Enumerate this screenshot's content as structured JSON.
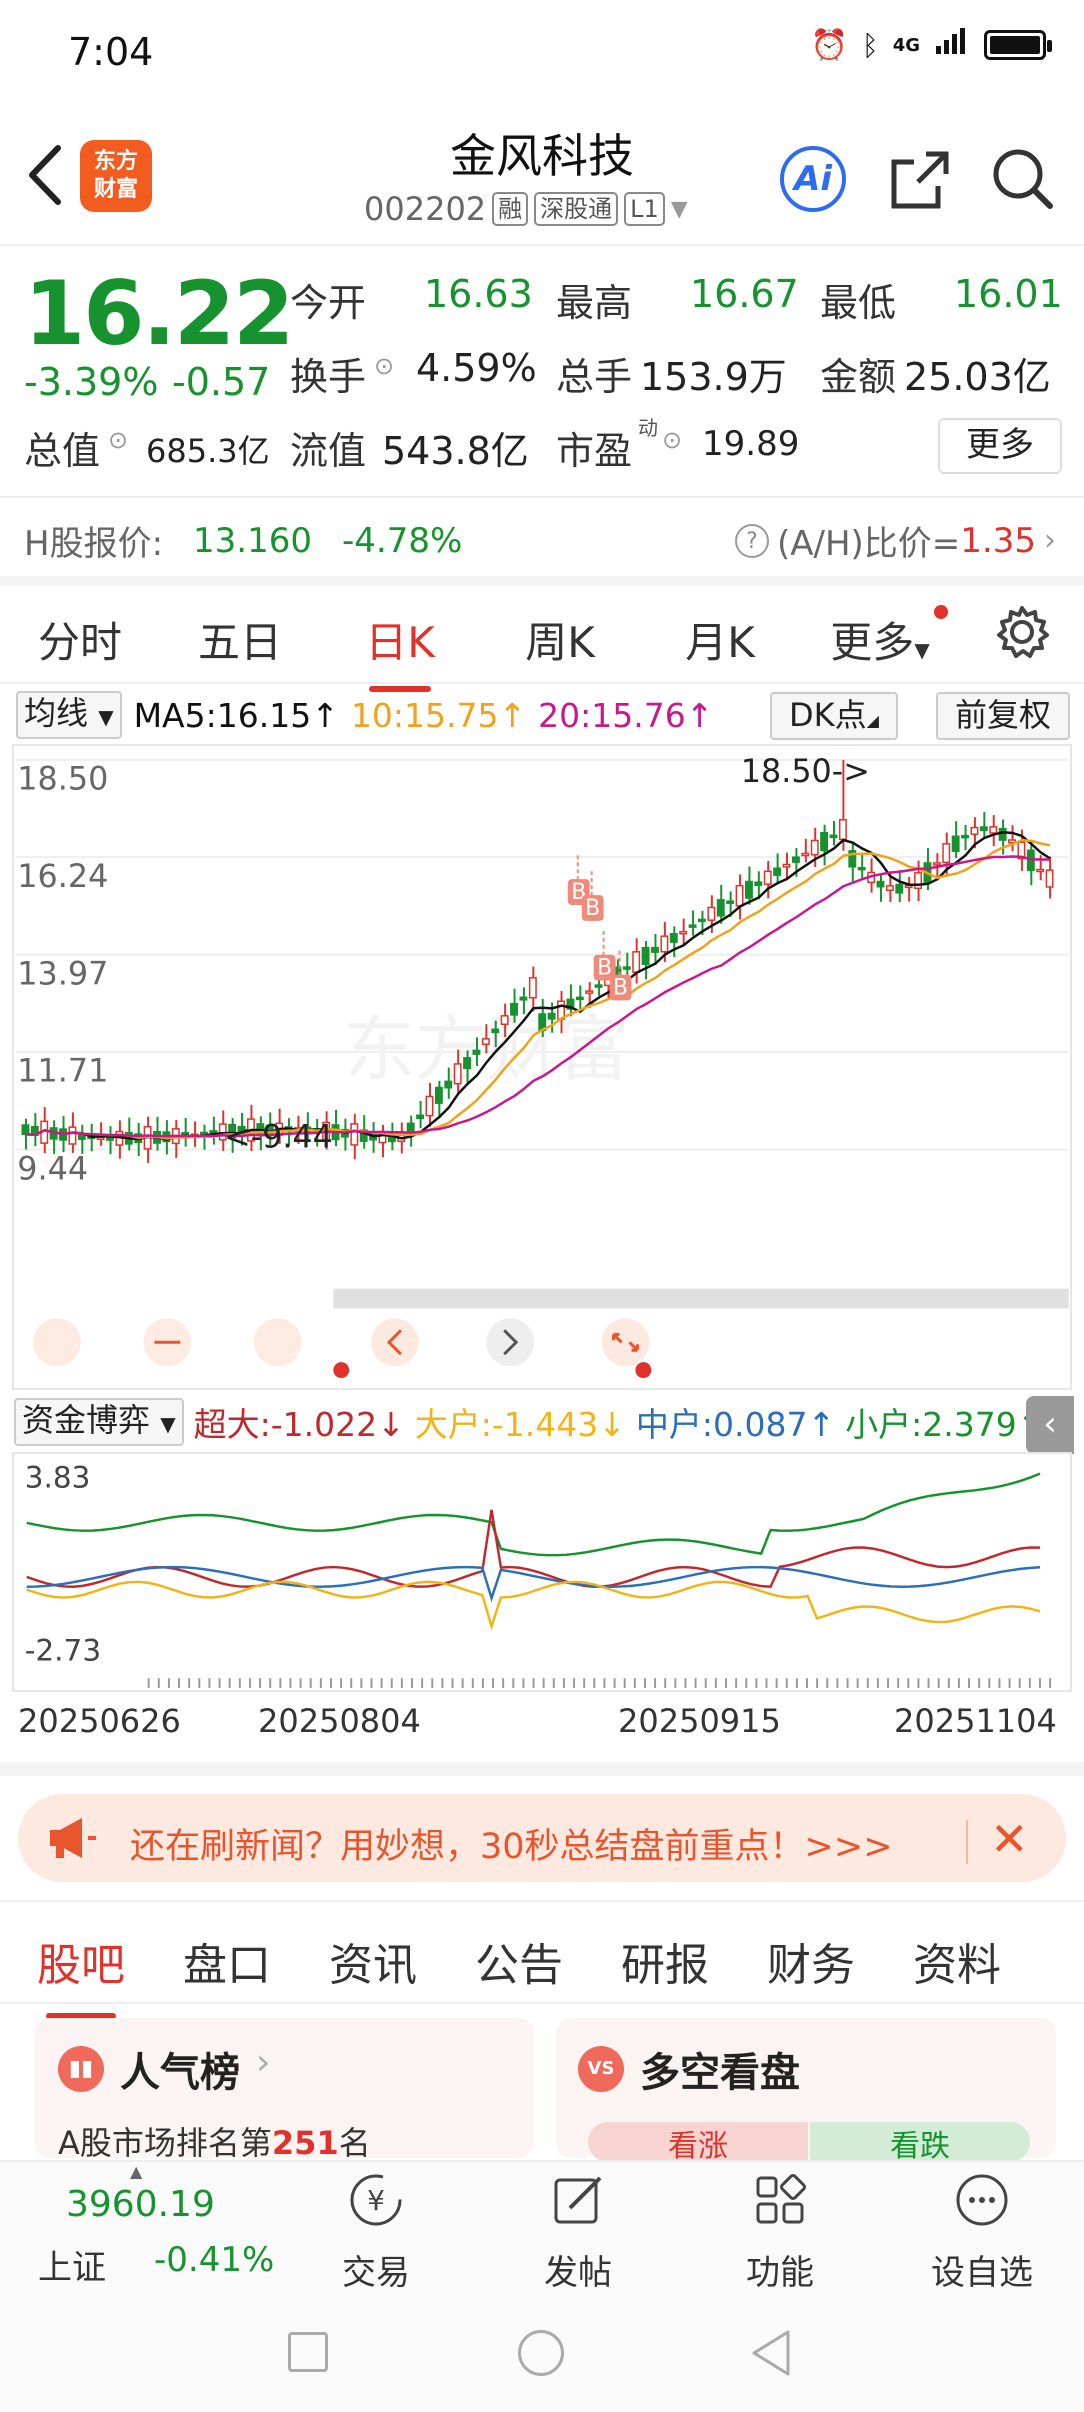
{
  "status_bar": {
    "time": "7:04",
    "signal": "4G"
  },
  "header": {
    "logo_line1": "东方",
    "logo_line2": "财富",
    "stock_name": "金风科技",
    "stock_code": "002202",
    "tags": [
      "融",
      "深股通",
      "L1"
    ],
    "ai_label": "Ai"
  },
  "quote": {
    "price": "16.22",
    "change_pct": "-3.39%",
    "change_val": "-0.57",
    "open_label": "今开",
    "open": "16.63",
    "high_label": "最高",
    "high": "16.67",
    "low_label": "最低",
    "low": "16.01",
    "turnover_label": "换手",
    "turnover": "4.59%",
    "volume_label": "总手",
    "volume": "153.9万",
    "amount_label": "金额",
    "amount": "25.03亿",
    "mktcap_label": "总值",
    "mktcap": "685.3亿",
    "float_label": "流值",
    "float_cap": "543.8亿",
    "pe_label": "市盈",
    "pe_sup": "动",
    "pe": "19.89",
    "more_label": "更多"
  },
  "h_share": {
    "label": "H股报价:",
    "price": "13.160",
    "change": "-4.78%",
    "ratio_label": "(A/H)比价=",
    "ratio": "1.35"
  },
  "period_tabs": [
    "分时",
    "五日",
    "日K",
    "周K",
    "月K",
    "更多"
  ],
  "active_period": "日K",
  "ma_bar": {
    "selector": "均线",
    "ma5": "MA5:16.15↑",
    "ma10": "10:15.75↑",
    "ma20": "20:15.76↑",
    "dk_label": "DK点",
    "fq_label": "前复权"
  },
  "kline": {
    "y_labels": [
      "18.50",
      "16.24",
      "13.97",
      "11.71",
      "9.44"
    ],
    "max_label": "18.50->",
    "min_label": "<-9.44",
    "watermark": "东方财富",
    "buy_marker": "B"
  },
  "fund": {
    "selector": "资金博弈",
    "super_large": "超大:-1.022↓",
    "large": "大户:-1.443↓",
    "medium": "中户:0.087↑",
    "small": "小户:2.379↑",
    "y_top": "3.83",
    "y_bottom": "-2.73",
    "collapse": "‹"
  },
  "dates": [
    "20250626",
    "20250804",
    "20250915",
    "20251104"
  ],
  "promo": {
    "text": "还在刷新闻？用妙想，30秒总结盘前重点！>>>"
  },
  "info_tabs": [
    "股吧",
    "盘口",
    "资讯",
    "公告",
    "研报",
    "财务",
    "资料"
  ],
  "active_info_tab": "股吧",
  "cards": {
    "popularity_title": "人气榜",
    "popularity_prefix": "A股市场排名第",
    "popularity_rank": "251",
    "popularity_suffix": "名",
    "bullbear_title": "多空看盘",
    "bull_label": "看涨",
    "bear_label": "看跌",
    "vs_icon": "VS"
  },
  "bottom_nav": {
    "index_value": "3960.19",
    "index_name": "上证",
    "index_change": "-0.41%",
    "trade": "交易",
    "post": "发帖",
    "features": "功能",
    "favorite": "设自选"
  },
  "colors": {
    "up": "#e0312b",
    "down": "#16922e",
    "ma5": "#111111",
    "ma10": "#f0a21a",
    "ma20": "#c8188a",
    "medium": "#2a6fb7"
  }
}
